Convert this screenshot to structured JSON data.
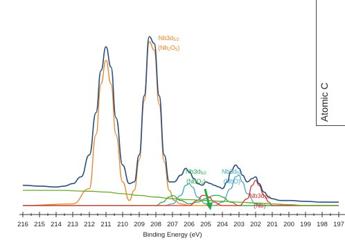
{
  "chart_data": {
    "type": "line",
    "title": "",
    "xlabel": "Binding Energy (eV)",
    "ylabel": "",
    "xlim": [
      216,
      197
    ],
    "x_reversed": true,
    "x_ticks": [
      "216",
      "215",
      "214",
      "213",
      "212",
      "211",
      "210",
      "209",
      "208",
      "207",
      "206",
      "205",
      "204",
      "203",
      "202",
      "201",
      "200",
      "199",
      "198",
      "197"
    ],
    "grid": false,
    "inset_label": "Atomic C",
    "series": [
      {
        "name": "",
        "color": "#2a4e7e",
        "role": "measured",
        "x": [
          216,
          215,
          214,
          213.5,
          213,
          212.5,
          212,
          211.6,
          211.3,
          211,
          210.7,
          210.4,
          210,
          209.6,
          209.3,
          209,
          208.7,
          208.4,
          208.1,
          207.8,
          207.5,
          207.2,
          206.9,
          206.5,
          206.2,
          206,
          205.7,
          205.5,
          205.2,
          205,
          204.7,
          204.5,
          204.2,
          204,
          203.7,
          203.5,
          203.2,
          203,
          202.8,
          202.5,
          202.2,
          202,
          201.8,
          201.5,
          201.2,
          201,
          200.5,
          200,
          199,
          198,
          197
        ],
        "values": [
          12,
          11.5,
          11,
          11.5,
          13,
          17,
          30,
          55,
          80,
          94,
          82,
          52,
          24,
          13,
          14,
          30,
          65,
          100,
          96,
          65,
          30,
          14,
          14,
          18,
          22,
          20,
          16,
          13,
          12,
          14,
          13,
          12,
          11,
          10,
          14,
          20,
          24,
          22,
          18,
          14,
          16,
          17,
          13,
          8,
          5,
          4,
          3,
          3,
          2.5,
          2,
          2
        ]
      },
      {
        "name": "",
        "color": "#f07f1f",
        "role": "component",
        "x": [
          216,
          213,
          212,
          211.6,
          211.3,
          211,
          210.7,
          210.4,
          210,
          209.6,
          209.3,
          209,
          208.7,
          208.4,
          208.1,
          207.8,
          207.5,
          207.2,
          206.9,
          206.5,
          206,
          205,
          204,
          202,
          197
        ],
        "values": [
          0,
          1,
          10,
          42,
          72,
          86,
          72,
          42,
          14,
          3,
          9,
          27,
          62,
          97,
          92,
          60,
          26,
          9,
          3,
          1,
          0,
          0,
          0,
          0,
          0
        ]
      },
      {
        "name": "",
        "color": "#3fa9c6",
        "role": "component",
        "x": [
          216,
          207.5,
          207,
          206.5,
          206.2,
          206,
          205.8,
          205.5,
          205,
          204.5,
          204,
          203.5,
          203.2,
          203,
          202.8,
          202.5,
          202,
          201.5,
          197
        ],
        "values": [
          0,
          0,
          1,
          6,
          12,
          13,
          11,
          5,
          1,
          0,
          2,
          10,
          17,
          18,
          14,
          7,
          1,
          0,
          0
        ]
      },
      {
        "name": "",
        "color": "#29a94a",
        "role": "component",
        "x": [
          216,
          208,
          207.6,
          207.2,
          207,
          206.5,
          206,
          205.5,
          205,
          204.5,
          204.2,
          204,
          203.5,
          203,
          202,
          197
        ],
        "values": [
          0,
          0,
          2,
          5,
          6,
          3,
          1,
          2,
          4,
          6,
          6,
          5,
          2,
          0,
          0,
          0
        ]
      },
      {
        "name": "",
        "color": "#d9342b",
        "role": "component",
        "x": [
          216,
          206,
          205.5,
          205.2,
          205,
          204.8,
          204.5,
          204,
          203,
          202.5,
          202.2,
          202,
          201.8,
          201.5,
          201.2,
          201,
          197
        ],
        "values": [
          0,
          0,
          3,
          6,
          6,
          5,
          2,
          0,
          0,
          4,
          12,
          15,
          12,
          6,
          2,
          0,
          0
        ]
      },
      {
        "name": "",
        "color": "#6aa624",
        "role": "background",
        "x": [
          216,
          214,
          212,
          211,
          210,
          209,
          208,
          207,
          206,
          205,
          204,
          203,
          202,
          201,
          200,
          199,
          198,
          197
        ],
        "values": [
          9,
          9,
          8.5,
          8,
          7,
          6,
          5,
          4,
          3.5,
          3,
          2.5,
          2,
          1.5,
          1,
          0.5,
          0,
          0,
          0
        ]
      }
    ],
    "annotations": [
      {
        "label": "Nb3d",
        "sub": "5/2",
        "paren": "(Nb",
        "paren_sub": "2",
        "paren_mid": "O",
        "paren_sub2": "5",
        "paren_end": ")",
        "color": "#f07f1f"
      },
      {
        "label": "Nb3d",
        "sub": "5/2",
        "paren": "(NbO",
        "paren_sub": "2",
        "paren_end": ")",
        "color": "#29a94a"
      },
      {
        "label": "Nb3d",
        "sub": "5/2",
        "paren": "(NbO)",
        "color": "#3fa9c6"
      },
      {
        "label": "Nb3d",
        "sub": "5/2",
        "paren": "(Nb)",
        "color": "#d9342b"
      }
    ]
  }
}
